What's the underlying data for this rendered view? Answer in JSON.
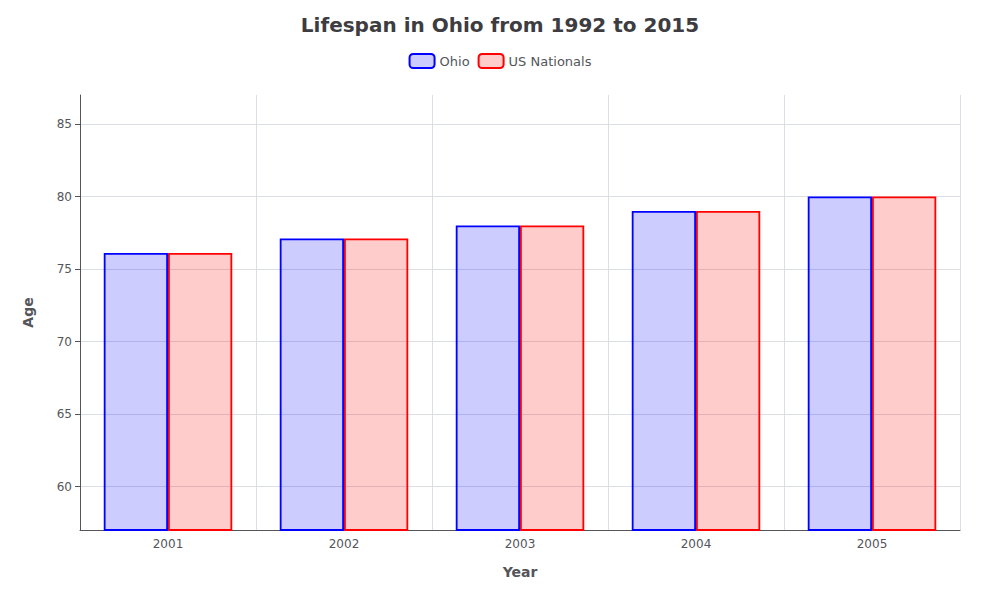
{
  "chart_data": {
    "type": "bar",
    "title": "Lifespan in Ohio from 1992 to 2015",
    "x_label": "Year",
    "y_label": "Age",
    "categories": [
      "2001",
      "2002",
      "2003",
      "2004",
      "2005"
    ],
    "series": [
      {
        "name": "Ohio",
        "color": "#0000ff",
        "values": [
          76.1,
          77.1,
          78.0,
          79.0,
          80.0
        ]
      },
      {
        "name": "US Nationals",
        "color": "#ff0000",
        "values": [
          76.1,
          77.1,
          78.0,
          79.0,
          80.0
        ]
      }
    ],
    "ylim": [
      57,
      87
    ],
    "yticks": [
      60,
      65,
      70,
      75,
      80,
      85
    ],
    "grid": true,
    "legend": "top"
  }
}
